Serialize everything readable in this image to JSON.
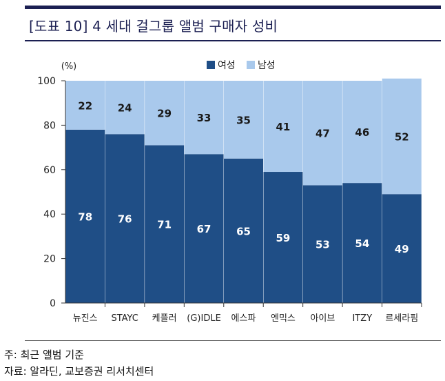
{
  "header": {
    "title": "[도표 10] 4 세대 걸그룹 앨범 구매자 성비"
  },
  "chart_data": {
    "type": "bar",
    "stacked": true,
    "unit_label": "(%)",
    "categories": [
      "뉴진스",
      "STAYC",
      "케플러",
      "(G)IDLE",
      "에스파",
      "엔믹스",
      "아이브",
      "ITZY",
      "르세라핌"
    ],
    "series": [
      {
        "name": "여성",
        "color": "#1f4e86",
        "values": [
          78,
          76,
          71,
          67,
          65,
          59,
          53,
          54,
          49
        ]
      },
      {
        "name": "남성",
        "color": "#a9c9ec",
        "values": [
          22,
          24,
          29,
          33,
          35,
          41,
          47,
          46,
          52
        ]
      }
    ],
    "ylim": [
      0,
      100
    ],
    "yticks": [
      0,
      20,
      40,
      60,
      80,
      100
    ],
    "legend_position": "top-center",
    "grid": false
  },
  "footer": {
    "note": "주: 최근 앨범 기준",
    "source": "자료: 알라딘, 교보증권 리서치센터"
  }
}
